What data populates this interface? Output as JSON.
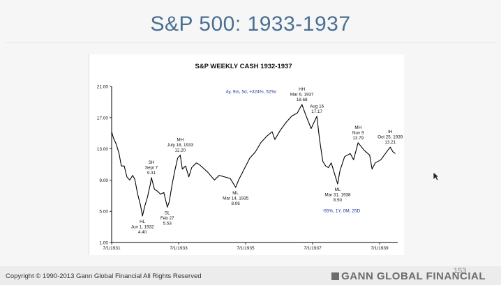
{
  "slide": {
    "title": "S&P 500: 1933-1937",
    "copyright": "Copyright © 1990-2013 Gann Global Financial All Rights Reserved",
    "brand": "GANN GLOBAL FINANCIAL",
    "page_number": "153"
  },
  "chart_data": {
    "type": "line",
    "title": "S&P WEEKLY CASH 1932-1937",
    "xlabel": "",
    "ylabel": "",
    "ylim": [
      1.0,
      21.0
    ],
    "yticks": [
      "21.00",
      "17.00",
      "13.00",
      "9.00",
      "5.00",
      "1.00"
    ],
    "xticks": [
      "7/1/1931",
      "7/1/1933",
      "7/1/1935",
      "7/1/1937",
      "7/1/1939"
    ],
    "xlim": [
      "1931-07-01",
      "1940-01-15"
    ],
    "grid": false,
    "series": [
      {
        "color": "#000000",
        "x": [
          "1931-07-01",
          "1931-07-20",
          "1931-08-20",
          "1931-09-20",
          "1931-10-15",
          "1931-11-15",
          "1931-12-15",
          "1932-01-15",
          "1932-02-15",
          "1932-03-10",
          "1932-04-10",
          "1932-05-10",
          "1932-06-01",
          "1932-06-25",
          "1932-07-25",
          "1932-08-25",
          "1932-09-07",
          "1932-10-10",
          "1932-11-10",
          "1932-12-15",
          "1933-01-20",
          "1933-02-27",
          "1933-03-20",
          "1933-04-20",
          "1933-05-20",
          "1933-06-20",
          "1933-07-18",
          "1933-08-10",
          "1933-09-15",
          "1933-10-20",
          "1933-11-20",
          "1934-01-10",
          "1934-02-10",
          "1934-03-20",
          "1934-05-15",
          "1934-07-26",
          "1934-09-15",
          "1934-11-15",
          "1935-01-15",
          "1935-03-14",
          "1935-04-15",
          "1935-06-15",
          "1935-08-15",
          "1935-10-15",
          "1935-12-15",
          "1936-02-15",
          "1936-04-15",
          "1936-05-15",
          "1936-07-15",
          "1936-09-15",
          "1936-11-15",
          "1937-01-15",
          "1937-03-06",
          "1937-04-15",
          "1937-06-15",
          "1937-08-16",
          "1937-09-15",
          "1937-10-20",
          "1937-11-20",
          "1937-12-20",
          "1938-01-20",
          "1938-03-31",
          "1938-04-25",
          "1938-06-15",
          "1938-08-15",
          "1938-09-20",
          "1938-11-09",
          "1939-01-15",
          "1939-03-15",
          "1939-04-10",
          "1939-05-15",
          "1939-07-15",
          "1939-09-15",
          "1939-10-25",
          "1939-11-25",
          "1939-12-20"
        ],
        "values": [
          15.2,
          14.4,
          13.6,
          12.4,
          10.8,
          10.8,
          9.4,
          9.0,
          9.6,
          9.1,
          7.2,
          5.8,
          4.4,
          5.6,
          6.8,
          8.4,
          9.31,
          7.8,
          7.6,
          7.2,
          7.4,
          5.53,
          6.2,
          8.4,
          10.2,
          11.8,
          12.2,
          10.4,
          10.8,
          9.4,
          10.6,
          11.2,
          11.0,
          10.6,
          10.0,
          9.0,
          9.6,
          9.4,
          9.2,
          8.06,
          9.0,
          10.4,
          11.8,
          12.6,
          13.8,
          14.6,
          15.2,
          14.2,
          15.4,
          16.4,
          17.2,
          17.6,
          18.68,
          17.4,
          15.6,
          17.17,
          14.2,
          11.4,
          10.8,
          10.6,
          11.2,
          8.5,
          10.2,
          12.0,
          12.4,
          11.6,
          13.79,
          12.8,
          12.2,
          10.4,
          11.2,
          11.6,
          12.6,
          13.21,
          12.6,
          12.4
        ]
      }
    ],
    "annotations": [
      {
        "lines": [
          "HL",
          "Jun  1, 1932",
          "4.40"
        ],
        "date": "1932-06-01",
        "value": 4.4,
        "place": "below"
      },
      {
        "lines": [
          "SH",
          "Sept 7",
          "9.31"
        ],
        "date": "1932-09-07",
        "value": 9.31,
        "place": "above"
      },
      {
        "lines": [
          "SL",
          "Feb 27",
          "5.53"
        ],
        "date": "1933-02-27",
        "value": 5.53,
        "place": "below"
      },
      {
        "lines": [
          "MH",
          "July 18, 1933",
          "12.20"
        ],
        "date": "1933-07-18",
        "value": 12.2,
        "place": "above"
      },
      {
        "lines": [
          "ML",
          "Mar 14, 1935",
          "8.06"
        ],
        "date": "1935-03-14",
        "value": 8.06,
        "place": "below"
      },
      {
        "lines": [
          "HH",
          "Mar 6, 1937",
          "18.68"
        ],
        "date": "1937-03-06",
        "value": 18.68,
        "place": "above"
      },
      {
        "lines": [
          "Aug 16",
          "17.17"
        ],
        "date": "1937-08-16",
        "value": 17.17,
        "place": "above"
      },
      {
        "lines": [
          "ML",
          "Mar 31, 1938",
          "8.50"
        ],
        "date": "1938-03-31",
        "value": 8.5,
        "place": "below"
      },
      {
        "lines": [
          "MH",
          "Nov 9",
          "13.79"
        ],
        "date": "1938-11-09",
        "value": 13.79,
        "place": "above"
      },
      {
        "lines": [
          "IH",
          "Oct 25, 1939",
          "13.21"
        ],
        "date": "1939-10-25",
        "value": 13.21,
        "place": "above"
      }
    ],
    "notes": [
      {
        "text": "4y, 9m, 5d, +324%, 52%r",
        "color": "#1f2f9e",
        "near_date": "1935-09-01",
        "near_value": 20.15
      },
      {
        "text": "-55%, 1Y, 0M, 25D",
        "color": "#1f2f9e",
        "near_date": "1938-05-10",
        "near_value": 4.9
      }
    ]
  }
}
